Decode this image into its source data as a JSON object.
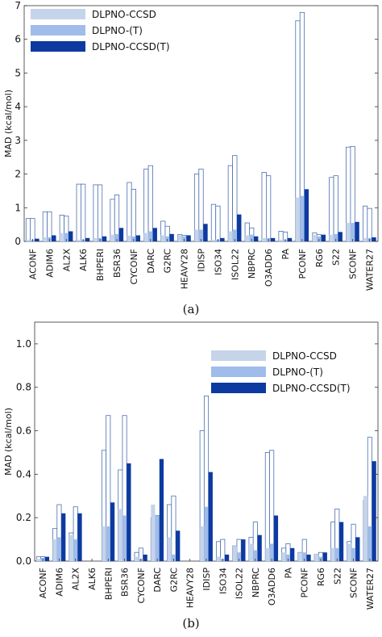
{
  "chart_data": [
    {
      "type": "bar",
      "panel_label": "(a)",
      "ylabel": "MAD (kcal/mol)",
      "ylim": [
        0,
        7
      ],
      "yticks": [
        0,
        1,
        2,
        3,
        4,
        5,
        6,
        7
      ],
      "legend_position": "top-left",
      "categories": [
        "ACONF",
        "ADIM6",
        "AL2X",
        "ALK6",
        "BHPERI",
        "BSR36",
        "CYCONF",
        "DARC",
        "G2RC",
        "HEAVY28",
        "IDISP",
        "ISO34",
        "ISOL22",
        "NBPRC",
        "O3ADD6",
        "PA",
        "PCONF",
        "RG6",
        "S22",
        "SCONF",
        "WATER27"
      ],
      "series": [
        {
          "name": "DLPNO-CCSD",
          "color": "#c6d4ea",
          "values": [
            0.05,
            0.12,
            0.25,
            0.05,
            0.1,
            0.2,
            0.17,
            0.25,
            0.18,
            0.18,
            0.35,
            0.05,
            0.3,
            0.18,
            0.1,
            0.05,
            1.3,
            0.2,
            0.2,
            0.55,
            0.1
          ]
        },
        {
          "name": "DLPNO-(T)",
          "color": "#9fbcea",
          "values": [
            0.05,
            0.12,
            0.25,
            0.05,
            0.1,
            0.22,
            0.15,
            0.3,
            0.15,
            0.15,
            0.35,
            0.05,
            0.35,
            0.2,
            0.1,
            0.05,
            1.35,
            0.15,
            0.22,
            0.55,
            0.1
          ]
        },
        {
          "name": "DLPNO-CCSD(T)",
          "color": "#0d3aa0",
          "values": [
            0.08,
            0.18,
            0.3,
            0.1,
            0.15,
            0.4,
            0.18,
            0.4,
            0.22,
            0.18,
            0.52,
            0.1,
            0.8,
            0.15,
            0.1,
            0.1,
            1.55,
            0.2,
            0.28,
            0.58,
            0.12
          ]
        }
      ],
      "outline_values": [
        [
          0.68,
          0.88,
          0.78,
          1.7,
          1.68,
          1.25,
          1.75,
          2.15,
          0.6,
          0.2,
          2.0,
          1.1,
          2.25,
          0.55,
          2.05,
          0.3,
          6.55,
          0.25,
          1.9,
          2.8,
          1.05
        ],
        [
          0.68,
          0.88,
          0.75,
          1.7,
          1.68,
          1.38,
          1.55,
          2.25,
          0.45,
          0.18,
          2.15,
          1.05,
          2.55,
          0.4,
          1.95,
          0.28,
          6.8,
          0.2,
          1.95,
          2.82,
          0.98
        ]
      ]
    },
    {
      "type": "bar",
      "panel_label": "(b)",
      "ylabel": "MAD (kcal/mol)",
      "ylim": [
        0,
        1.1
      ],
      "yticks": [
        0.0,
        0.2,
        0.4,
        0.6,
        0.8,
        1.0
      ],
      "legend_position": "top-right",
      "categories": [
        "ACONF",
        "ADIM6",
        "AL2X",
        "ALK6",
        "BHPERI",
        "BSR36",
        "CYCONF",
        "DARC",
        "G2RC",
        "HEAVY28",
        "IDISP",
        "ISO34",
        "ISOL22",
        "NBPRC",
        "O3ADD6",
        "PA",
        "PCONF",
        "RG6",
        "S22",
        "SCONF",
        "WATER27"
      ],
      "series": [
        {
          "name": "DLPNO-CCSD",
          "color": "#c6d4ea",
          "values": [
            0.01,
            0.1,
            0.12,
            0,
            0.16,
            0.24,
            0.02,
            0.26,
            0.11,
            0,
            0.16,
            0.02,
            0.07,
            0.08,
            0.06,
            0.04,
            0.04,
            0.03,
            0.06,
            0.08,
            0.3
          ]
        },
        {
          "name": "DLPNO-(T)",
          "color": "#9fbcea",
          "values": [
            0.015,
            0.11,
            0.1,
            0,
            0.16,
            0.21,
            0.01,
            0.21,
            0.03,
            0,
            0.25,
            0.01,
            0.04,
            0.05,
            0.08,
            0.03,
            0.04,
            0.02,
            0.06,
            0.06,
            0.16
          ]
        },
        {
          "name": "DLPNO-CCSD(T)",
          "color": "#0d3aa0",
          "values": [
            0.02,
            0.22,
            0.22,
            0,
            0.27,
            0.45,
            0.03,
            0.47,
            0.14,
            0,
            0.41,
            0.03,
            0.1,
            0.12,
            0.21,
            0.06,
            0.03,
            0.04,
            0.18,
            0.11,
            0.46
          ]
        }
      ],
      "outline_values": [
        [
          0.02,
          0.15,
          0.13,
          0,
          0.51,
          0.42,
          0.04,
          0.2,
          0.26,
          0,
          0.6,
          0.09,
          0.07,
          0.11,
          0.5,
          0.06,
          0.04,
          0.03,
          0.18,
          0.09,
          0.28
        ],
        [
          0.02,
          0.26,
          0.25,
          0,
          0.67,
          0.67,
          0.06,
          0.21,
          0.3,
          0,
          0.76,
          0.1,
          0.1,
          0.18,
          0.51,
          0.08,
          0.1,
          0.04,
          0.24,
          0.17,
          0.57
        ]
      ]
    }
  ]
}
